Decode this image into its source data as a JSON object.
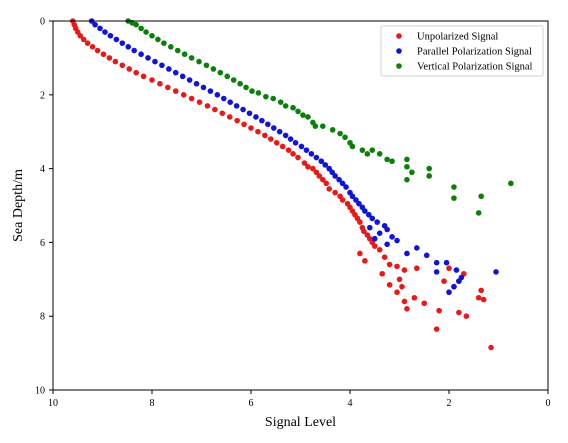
{
  "chart_data": {
    "type": "scatter",
    "xlabel": "Signal Level",
    "ylabel": "Sea Depth/m",
    "xlim": [
      10,
      0
    ],
    "ylim": [
      10,
      0
    ],
    "x_inverted": true,
    "y_inverted": true,
    "xticks": [
      10,
      8,
      6,
      4,
      2,
      0
    ],
    "yticks": [
      0,
      2,
      4,
      6,
      8,
      10
    ],
    "grid": false,
    "legend_position": "top-right",
    "series": [
      {
        "name": "Unpolarized Signal",
        "color": "#e8191a",
        "points": [
          [
            9.6,
            0.0
          ],
          [
            9.57,
            0.1
          ],
          [
            9.54,
            0.2
          ],
          [
            9.5,
            0.3
          ],
          [
            9.45,
            0.4
          ],
          [
            9.38,
            0.5
          ],
          [
            9.3,
            0.6
          ],
          [
            9.2,
            0.7
          ],
          [
            9.1,
            0.8
          ],
          [
            8.98,
            0.9
          ],
          [
            8.86,
            1.0
          ],
          [
            8.74,
            1.1
          ],
          [
            8.6,
            1.2
          ],
          [
            8.46,
            1.3
          ],
          [
            8.32,
            1.4
          ],
          [
            8.17,
            1.5
          ],
          [
            8.0,
            1.6
          ],
          [
            7.84,
            1.7
          ],
          [
            7.68,
            1.8
          ],
          [
            7.52,
            1.9
          ],
          [
            7.36,
            2.0
          ],
          [
            7.2,
            2.1
          ],
          [
            7.04,
            2.2
          ],
          [
            6.88,
            2.3
          ],
          [
            6.73,
            2.4
          ],
          [
            6.58,
            2.5
          ],
          [
            6.43,
            2.6
          ],
          [
            6.28,
            2.7
          ],
          [
            6.14,
            2.8
          ],
          [
            6.0,
            2.9
          ],
          [
            5.86,
            3.0
          ],
          [
            5.72,
            3.1
          ],
          [
            5.6,
            3.2
          ],
          [
            5.48,
            3.3
          ],
          [
            5.36,
            3.4
          ],
          [
            5.24,
            3.5
          ],
          [
            5.15,
            3.6
          ],
          [
            5.05,
            3.7
          ],
          [
            4.92,
            3.85
          ],
          [
            4.85,
            3.95
          ],
          [
            4.75,
            4.0
          ],
          [
            4.68,
            4.1
          ],
          [
            4.62,
            4.2
          ],
          [
            4.55,
            4.3
          ],
          [
            4.48,
            4.4
          ],
          [
            4.42,
            4.55
          ],
          [
            4.3,
            4.65
          ],
          [
            4.2,
            4.75
          ],
          [
            4.15,
            4.85
          ],
          [
            4.05,
            4.95
          ],
          [
            4.0,
            5.05
          ],
          [
            3.95,
            5.15
          ],
          [
            3.9,
            5.25
          ],
          [
            3.85,
            5.35
          ],
          [
            3.8,
            5.45
          ],
          [
            3.75,
            5.6
          ],
          [
            3.72,
            5.7
          ],
          [
            3.65,
            5.8
          ],
          [
            3.6,
            5.9
          ],
          [
            3.55,
            6.0
          ],
          [
            3.5,
            6.1
          ],
          [
            3.4,
            6.2
          ],
          [
            3.8,
            6.3
          ],
          [
            3.3,
            6.4
          ],
          [
            3.7,
            6.5
          ],
          [
            3.2,
            6.6
          ],
          [
            3.05,
            6.65
          ],
          [
            2.9,
            6.75
          ],
          [
            2.65,
            6.7
          ],
          [
            2.0,
            6.7
          ],
          [
            1.7,
            6.85
          ],
          [
            3.35,
            6.85
          ],
          [
            3.0,
            7.0
          ],
          [
            2.1,
            7.05
          ],
          [
            1.8,
            7.05
          ],
          [
            3.2,
            7.15
          ],
          [
            1.9,
            7.2
          ],
          [
            2.95,
            7.2
          ],
          [
            3.05,
            7.35
          ],
          [
            1.35,
            7.3
          ],
          [
            2.7,
            7.5
          ],
          [
            1.4,
            7.5
          ],
          [
            2.9,
            7.6
          ],
          [
            1.3,
            7.55
          ],
          [
            2.5,
            7.65
          ],
          [
            2.2,
            7.85
          ],
          [
            1.8,
            7.9
          ],
          [
            2.85,
            7.8
          ],
          [
            1.65,
            8.0
          ],
          [
            2.25,
            8.35
          ],
          [
            1.15,
            8.85
          ]
        ]
      },
      {
        "name": "Parallel Polarization Signal",
        "color": "#0f14d8",
        "points": [
          [
            9.22,
            0.0
          ],
          [
            9.15,
            0.1
          ],
          [
            9.05,
            0.2
          ],
          [
            8.95,
            0.3
          ],
          [
            8.84,
            0.4
          ],
          [
            8.72,
            0.5
          ],
          [
            8.6,
            0.6
          ],
          [
            8.48,
            0.7
          ],
          [
            8.36,
            0.8
          ],
          [
            8.22,
            0.9
          ],
          [
            8.08,
            1.0
          ],
          [
            7.94,
            1.1
          ],
          [
            7.8,
            1.2
          ],
          [
            7.66,
            1.3
          ],
          [
            7.52,
            1.4
          ],
          [
            7.38,
            1.5
          ],
          [
            7.24,
            1.6
          ],
          [
            7.1,
            1.7
          ],
          [
            6.96,
            1.8
          ],
          [
            6.82,
            1.9
          ],
          [
            6.68,
            2.0
          ],
          [
            6.55,
            2.1
          ],
          [
            6.42,
            2.2
          ],
          [
            6.29,
            2.3
          ],
          [
            6.16,
            2.4
          ],
          [
            6.03,
            2.5
          ],
          [
            5.9,
            2.6
          ],
          [
            5.78,
            2.7
          ],
          [
            5.66,
            2.8
          ],
          [
            5.54,
            2.9
          ],
          [
            5.42,
            3.0
          ],
          [
            5.3,
            3.1
          ],
          [
            5.2,
            3.2
          ],
          [
            5.1,
            3.3
          ],
          [
            4.98,
            3.4
          ],
          [
            4.88,
            3.5
          ],
          [
            4.78,
            3.6
          ],
          [
            4.68,
            3.7
          ],
          [
            4.58,
            3.8
          ],
          [
            4.5,
            3.9
          ],
          [
            4.42,
            4.0
          ],
          [
            4.36,
            4.1
          ],
          [
            4.3,
            4.2
          ],
          [
            4.22,
            4.3
          ],
          [
            4.15,
            4.4
          ],
          [
            4.08,
            4.5
          ],
          [
            4.0,
            4.65
          ],
          [
            3.95,
            4.75
          ],
          [
            3.88,
            4.85
          ],
          [
            3.82,
            4.95
          ],
          [
            3.75,
            5.05
          ],
          [
            3.7,
            5.15
          ],
          [
            3.62,
            5.25
          ],
          [
            3.55,
            5.35
          ],
          [
            3.45,
            5.45
          ],
          [
            3.3,
            5.55
          ],
          [
            3.6,
            5.6
          ],
          [
            3.25,
            5.65
          ],
          [
            3.4,
            5.75
          ],
          [
            3.15,
            5.85
          ],
          [
            3.5,
            5.9
          ],
          [
            3.05,
            5.95
          ],
          [
            3.25,
            6.05
          ],
          [
            2.65,
            6.15
          ],
          [
            2.85,
            6.3
          ],
          [
            2.45,
            6.35
          ],
          [
            2.25,
            6.55
          ],
          [
            2.05,
            6.55
          ],
          [
            1.85,
            6.75
          ],
          [
            2.25,
            6.8
          ],
          [
            1.05,
            6.8
          ],
          [
            1.75,
            6.95
          ],
          [
            1.9,
            7.2
          ],
          [
            2.0,
            7.35
          ],
          [
            1.8,
            7.05
          ]
        ]
      },
      {
        "name": "Vertical Polarization Signal",
        "color": "#0a7f0a",
        "points": [
          [
            8.48,
            0.0
          ],
          [
            8.4,
            0.05
          ],
          [
            8.32,
            0.1
          ],
          [
            8.22,
            0.2
          ],
          [
            8.12,
            0.3
          ],
          [
            8.0,
            0.4
          ],
          [
            7.88,
            0.5
          ],
          [
            7.76,
            0.6
          ],
          [
            7.62,
            0.7
          ],
          [
            7.48,
            0.8
          ],
          [
            7.34,
            0.9
          ],
          [
            7.2,
            1.0
          ],
          [
            7.05,
            1.1
          ],
          [
            6.9,
            1.2
          ],
          [
            6.76,
            1.3
          ],
          [
            6.62,
            1.4
          ],
          [
            6.48,
            1.5
          ],
          [
            6.35,
            1.6
          ],
          [
            6.22,
            1.7
          ],
          [
            6.1,
            1.8
          ],
          [
            5.98,
            1.9
          ],
          [
            5.85,
            1.95
          ],
          [
            5.7,
            2.05
          ],
          [
            5.55,
            2.1
          ],
          [
            5.4,
            2.2
          ],
          [
            5.3,
            2.3
          ],
          [
            5.15,
            2.35
          ],
          [
            5.05,
            2.45
          ],
          [
            4.95,
            2.55
          ],
          [
            4.85,
            2.6
          ],
          [
            4.75,
            2.75
          ],
          [
            4.7,
            2.85
          ],
          [
            4.55,
            2.85
          ],
          [
            4.35,
            2.95
          ],
          [
            4.2,
            3.05
          ],
          [
            4.1,
            3.15
          ],
          [
            4.0,
            3.3
          ],
          [
            3.95,
            3.4
          ],
          [
            3.75,
            3.5
          ],
          [
            3.65,
            3.6
          ],
          [
            3.55,
            3.5
          ],
          [
            3.4,
            3.6
          ],
          [
            3.25,
            3.75
          ],
          [
            3.15,
            3.8
          ],
          [
            2.85,
            3.75
          ],
          [
            2.85,
            3.95
          ],
          [
            2.75,
            4.1
          ],
          [
            2.4,
            4.0
          ],
          [
            2.4,
            4.2
          ],
          [
            2.85,
            4.3
          ],
          [
            1.9,
            4.5
          ],
          [
            1.9,
            4.8
          ],
          [
            1.35,
            4.75
          ],
          [
            0.75,
            4.4
          ],
          [
            1.4,
            5.2
          ]
        ]
      }
    ]
  }
}
